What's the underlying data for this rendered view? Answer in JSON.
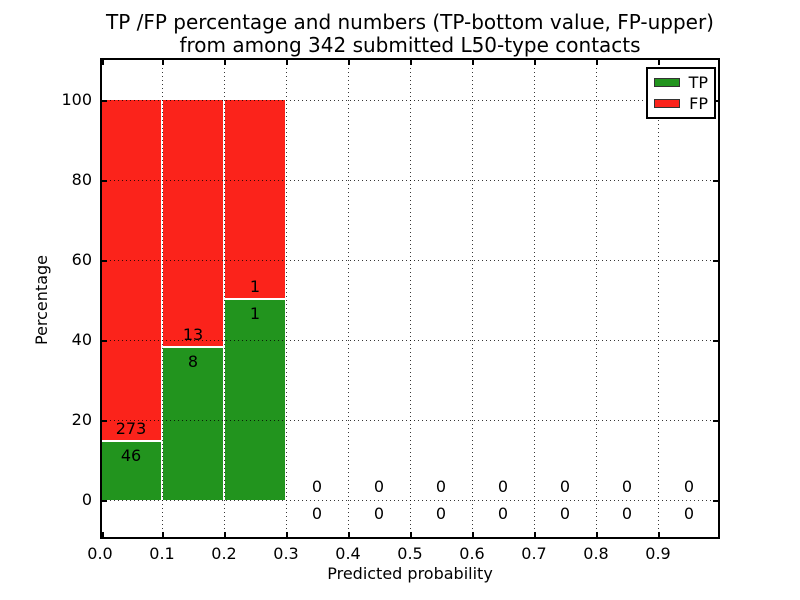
{
  "chart_data": {
    "type": "bar",
    "stacked": true,
    "normalized": "percentage",
    "title_line1": "TP /FP percentage and numbers (TP-bottom value, FP-upper)",
    "title_line2": "from among 342 submitted L50-type contacts",
    "xlabel": "Predicted probability",
    "ylabel": "Percentage",
    "total_contacts": 342,
    "bin_width": 0.1,
    "xlim": [
      0.0,
      1.0
    ],
    "ylim": [
      -10,
      110
    ],
    "grid": "dotted both axes",
    "legend_position": "upper right",
    "colors": {
      "tp": "#22941e",
      "fp": "#fb231b",
      "axis": "#000000",
      "background": "#ffffff"
    },
    "legend": [
      {
        "label": "TP",
        "color": "#22941e"
      },
      {
        "label": "FP",
        "color": "#fb231b"
      }
    ],
    "xticks": [
      {
        "value": 0.0,
        "label": "0.0"
      },
      {
        "value": 0.1,
        "label": "0.1"
      },
      {
        "value": 0.2,
        "label": "0.2"
      },
      {
        "value": 0.3,
        "label": "0.3"
      },
      {
        "value": 0.4,
        "label": "0.4"
      },
      {
        "value": 0.5,
        "label": "0.5"
      },
      {
        "value": 0.6,
        "label": "0.6"
      },
      {
        "value": 0.7,
        "label": "0.7"
      },
      {
        "value": 0.8,
        "label": "0.8"
      },
      {
        "value": 0.9,
        "label": "0.9"
      }
    ],
    "yticks": [
      {
        "value": 0,
        "label": "0"
      },
      {
        "value": 20,
        "label": "20"
      },
      {
        "value": 40,
        "label": "40"
      },
      {
        "value": 60,
        "label": "60"
      },
      {
        "value": 80,
        "label": "80"
      },
      {
        "value": 100,
        "label": "100"
      }
    ],
    "gridlines_x": [
      0.1,
      0.2,
      0.3,
      0.4,
      0.5,
      0.6,
      0.7,
      0.8,
      0.9
    ],
    "gridlines_y": [
      0,
      20,
      40,
      60,
      80,
      100
    ],
    "bins": [
      {
        "start": 0.0,
        "end": 0.1,
        "tp": 46,
        "fp": 273,
        "tp_pct": 14.42,
        "fp_pct": 85.58
      },
      {
        "start": 0.1,
        "end": 0.2,
        "tp": 8,
        "fp": 13,
        "tp_pct": 38.1,
        "fp_pct": 61.9
      },
      {
        "start": 0.2,
        "end": 0.3,
        "tp": 1,
        "fp": 1,
        "tp_pct": 50.0,
        "fp_pct": 50.0
      },
      {
        "start": 0.3,
        "end": 0.4,
        "tp": 0,
        "fp": 0,
        "tp_pct": 0,
        "fp_pct": 0
      },
      {
        "start": 0.4,
        "end": 0.5,
        "tp": 0,
        "fp": 0,
        "tp_pct": 0,
        "fp_pct": 0
      },
      {
        "start": 0.5,
        "end": 0.6,
        "tp": 0,
        "fp": 0,
        "tp_pct": 0,
        "fp_pct": 0
      },
      {
        "start": 0.6,
        "end": 0.7,
        "tp": 0,
        "fp": 0,
        "tp_pct": 0,
        "fp_pct": 0
      },
      {
        "start": 0.7,
        "end": 0.8,
        "tp": 0,
        "fp": 0,
        "tp_pct": 0,
        "fp_pct": 0
      },
      {
        "start": 0.8,
        "end": 0.9,
        "tp": 0,
        "fp": 0,
        "tp_pct": 0,
        "fp_pct": 0
      },
      {
        "start": 0.9,
        "end": 1.0,
        "tp": 0,
        "fp": 0,
        "tp_pct": 0,
        "fp_pct": 0
      }
    ]
  }
}
